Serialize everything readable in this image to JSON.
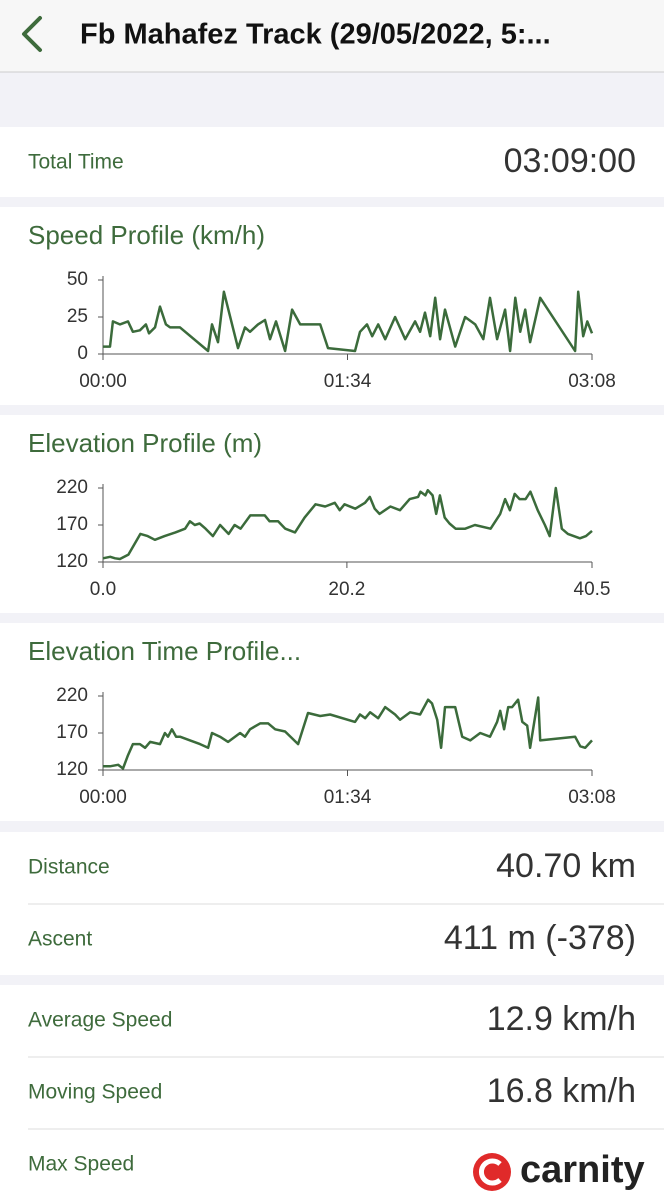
{
  "header": {
    "title": "Fb Mahafez Track (29/05/2022, 5:..."
  },
  "total_time": {
    "label": "Total Time",
    "value": "03:09:00"
  },
  "chart_data": [
    {
      "type": "line",
      "title": "Speed Profile (km/h)",
      "color": "#3b6b3b",
      "x": [
        0,
        2.7,
        3.8,
        6.5,
        9.6,
        11.5,
        14.2,
        16.5,
        17.7,
        20,
        21.9,
        24.2,
        25.8,
        29.6,
        40.4,
        41.9,
        44.2,
        46.5,
        51.9,
        54.6,
        56.5,
        59.6,
        62.3,
        64.2,
        66.5,
        70,
        72.7,
        75.8,
        83.5,
        86.5,
        96.9,
        98.8,
        101.5,
        103.5,
        105.8,
        108.5,
        112.3,
        116.2,
        120,
        121.9,
        123.8,
        125.8,
        127.7,
        129.6,
        131.5,
        135.4,
        139.2,
        143.1,
        146.2,
        148.8,
        151.5,
        154.6,
        156.5,
        158.5,
        160.4,
        162.3,
        164.2,
        168.1,
        181.5,
        182.7,
        184.6,
        186.2,
        188
      ],
      "values": [
        5,
        5,
        22,
        20,
        22,
        15,
        16,
        20,
        14,
        18,
        32,
        20,
        18,
        18,
        2,
        20,
        8,
        42,
        4,
        18,
        15,
        20,
        23,
        10,
        22,
        2,
        30,
        20,
        20,
        4,
        2,
        15,
        20,
        12,
        20,
        10,
        25,
        10,
        22,
        15,
        28,
        12,
        38,
        10,
        30,
        5,
        25,
        20,
        10,
        38,
        10,
        30,
        2,
        38,
        15,
        30,
        8,
        38,
        2,
        42,
        12,
        22,
        14
      ],
      "xlim": [
        0,
        188
      ],
      "ylim": [
        0,
        50
      ],
      "xticks": [
        {
          "value": 0,
          "label": "00:00"
        },
        {
          "value": 94,
          "label": "01:34"
        },
        {
          "value": 188,
          "label": "03:08"
        }
      ],
      "yticks": [
        0,
        25,
        50
      ]
    },
    {
      "type": "line",
      "title": "Elevation Profile (m)",
      "color": "#3b6b3b",
      "x": [
        0,
        0.6,
        1.0,
        1.4,
        2.1,
        3.1,
        3.7,
        4.3,
        5.1,
        6.0,
        6.8,
        7.2,
        7.6,
        8.0,
        8.5,
        9.1,
        9.7,
        10.4,
        10.9,
        11.4,
        12.2,
        13.0,
        13.4,
        13.8,
        14.5,
        15.1,
        15.9,
        16.7,
        17.6,
        18.4,
        19.2,
        19.6,
        20.0,
        20.9,
        21.7,
        22.1,
        22.5,
        22.9,
        23.8,
        24.6,
        25.4,
        26.1,
        26.3,
        26.7,
        26.9,
        27.3,
        27.6,
        27.9,
        28.3,
        28.7,
        29.2,
        30.0,
        30.8,
        32.1,
        32.9,
        33.3,
        33.7,
        34.1,
        34.5,
        35.0,
        35.4,
        36.0,
        36.6,
        37.0,
        37.5,
        38.0,
        38.5,
        39.5,
        40.0,
        40.5
      ],
      "values": [
        125,
        127,
        125,
        124,
        130,
        158,
        155,
        150,
        155,
        160,
        165,
        175,
        170,
        172,
        165,
        155,
        170,
        158,
        170,
        165,
        183,
        183,
        183,
        175,
        175,
        165,
        160,
        180,
        198,
        195,
        200,
        190,
        198,
        192,
        200,
        208,
        192,
        185,
        195,
        190,
        205,
        208,
        215,
        210,
        217,
        210,
        185,
        210,
        180,
        172,
        165,
        165,
        170,
        165,
        185,
        205,
        190,
        212,
        205,
        205,
        215,
        190,
        170,
        155,
        220,
        165,
        158,
        152,
        155,
        162
      ],
      "xlim": [
        0,
        40.5
      ],
      "ylim": [
        120,
        220
      ],
      "xticks": [
        {
          "value": 0,
          "label": "0.0"
        },
        20.2,
        40.5
      ],
      "yticks": [
        120,
        170,
        220
      ]
    },
    {
      "type": "line",
      "title": "Elevation Time Profile...",
      "color": "#3b6b3b",
      "x": [
        0,
        2.7,
        5.8,
        7.7,
        9.6,
        11.5,
        14.2,
        16.2,
        18.1,
        21.9,
        23.8,
        25.0,
        26.5,
        28.1,
        29.6,
        33.5,
        37.3,
        40.4,
        41.9,
        45.0,
        48.1,
        52.7,
        54.6,
        56.5,
        60.4,
        63.5,
        66.2,
        70.0,
        75.0,
        78.8,
        83.5,
        87.3,
        96.9,
        98.8,
        100.8,
        102.7,
        105.8,
        108.5,
        112.3,
        114.2,
        118.1,
        121.9,
        125.0,
        126.5,
        128.5,
        130.0,
        131.5,
        135.4,
        138.1,
        141.2,
        145.0,
        148.8,
        151.5,
        152.7,
        154.2,
        155.8,
        157.3,
        159.6,
        161.2,
        163.1,
        164.2,
        167.3,
        168.1,
        181.5,
        183.5,
        185.4,
        188
      ],
      "values": [
        125,
        125,
        127,
        122,
        140,
        155,
        155,
        150,
        158,
        155,
        170,
        165,
        175,
        165,
        165,
        160,
        155,
        150,
        170,
        165,
        158,
        170,
        165,
        175,
        183,
        183,
        175,
        172,
        155,
        197,
        193,
        195,
        185,
        195,
        190,
        198,
        190,
        205,
        195,
        188,
        198,
        195,
        215,
        210,
        188,
        150,
        205,
        205,
        165,
        160,
        170,
        165,
        185,
        200,
        175,
        205,
        205,
        215,
        185,
        180,
        150,
        218,
        160,
        165,
        152,
        150,
        160
      ],
      "xlim": [
        0,
        188
      ],
      "ylim": [
        120,
        220
      ],
      "xticks": [
        {
          "value": 0,
          "label": "00:00"
        },
        {
          "value": 94,
          "label": "01:34"
        },
        {
          "value": 188,
          "label": "03:08"
        }
      ],
      "yticks": [
        120,
        170,
        220
      ]
    }
  ],
  "stats": [
    {
      "rows": [
        {
          "label": "Distance",
          "value": "40.70 km"
        },
        {
          "label": "Ascent",
          "value": "411 m (-378)"
        }
      ]
    },
    {
      "rows": [
        {
          "label": "Average Speed",
          "value": "12.9 km/h"
        },
        {
          "label": "Moving Speed",
          "value": "16.8 km/h"
        },
        {
          "label": "Max Speed"
        }
      ]
    }
  ],
  "watermark": "carnity"
}
